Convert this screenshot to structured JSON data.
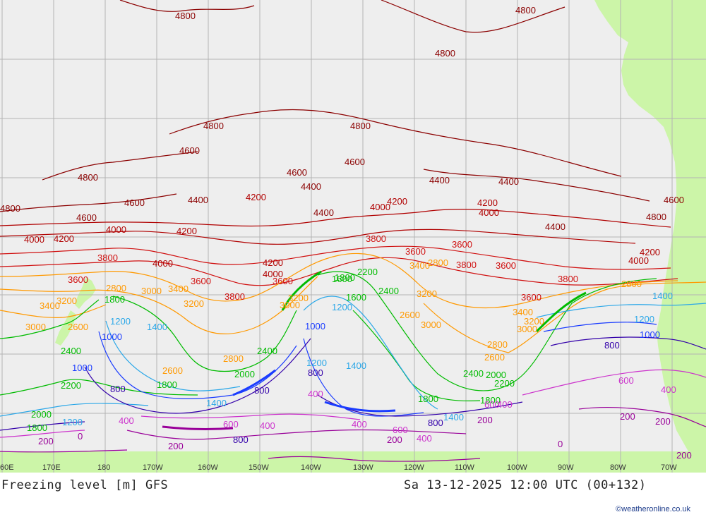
{
  "title": {
    "left": "Freezing level [m] GFS",
    "right": "Sa 13-12-2025 12:00 UTC (00+132)"
  },
  "credit": "©weatheronline.co.uk",
  "longitudes": [
    "60E",
    "170E",
    "180",
    "170W",
    "160W",
    "150W",
    "140W",
    "130W",
    "120W",
    "110W",
    "100W",
    "90W",
    "80W",
    "70W"
  ],
  "colors": {
    "ocean": "#eeeeee",
    "land": "#ccf5a8",
    "grid": "#b4b4b4",
    "c4800": "#8b0000",
    "c4000": "#b00000",
    "c3600": "#d01010",
    "c3000": "#ff9900",
    "c2400": "#00bb00",
    "c1400": "#2aa7e8",
    "c1000": "#1a3cff",
    "c800": "#3300aa",
    "c600": "#cc33cc",
    "c200": "#990099"
  },
  "contour_labels": [
    {
      "t": "4800",
      "c": "c4800"
    },
    {
      "t": "4800",
      "c": "c4800"
    },
    {
      "t": "4800",
      "c": "c4800"
    },
    {
      "t": "4800",
      "c": "c4800"
    },
    {
      "t": "4800",
      "c": "c4800"
    },
    {
      "t": "4800",
      "c": "c4800"
    },
    {
      "t": "4800",
      "c": "c4800"
    },
    {
      "t": "4800",
      "c": "c4800"
    },
    {
      "t": "4600",
      "c": "c4800"
    },
    {
      "t": "4600",
      "c": "c4800"
    },
    {
      "t": "4600",
      "c": "c4800"
    },
    {
      "t": "4600",
      "c": "c4800"
    },
    {
      "t": "4600",
      "c": "c4800"
    },
    {
      "t": "4600",
      "c": "c4800"
    },
    {
      "t": "4400",
      "c": "c4800"
    },
    {
      "t": "4400",
      "c": "c4800"
    },
    {
      "t": "4400",
      "c": "c4800"
    },
    {
      "t": "4400",
      "c": "c4800"
    },
    {
      "t": "4400",
      "c": "c4800"
    },
    {
      "t": "4400",
      "c": "c4800"
    },
    {
      "t": "4200",
      "c": "c4000"
    },
    {
      "t": "4200",
      "c": "c4000"
    },
    {
      "t": "4200",
      "c": "c4000"
    },
    {
      "t": "4200",
      "c": "c4000"
    },
    {
      "t": "4200",
      "c": "c4000"
    },
    {
      "t": "4200",
      "c": "c4000"
    },
    {
      "t": "4200",
      "c": "c4000"
    },
    {
      "t": "4000",
      "c": "c4000"
    },
    {
      "t": "4000",
      "c": "c4000"
    },
    {
      "t": "4000",
      "c": "c4000"
    },
    {
      "t": "4000",
      "c": "c4000"
    },
    {
      "t": "4000",
      "c": "c4000"
    },
    {
      "t": "4000",
      "c": "c4000"
    },
    {
      "t": "4000",
      "c": "c4000"
    },
    {
      "t": "3800",
      "c": "c3600"
    },
    {
      "t": "3800",
      "c": "c3600"
    },
    {
      "t": "3800",
      "c": "c3600"
    },
    {
      "t": "3800",
      "c": "c3600"
    },
    {
      "t": "3800",
      "c": "c3600"
    },
    {
      "t": "3600",
      "c": "c3600"
    },
    {
      "t": "3600",
      "c": "c3600"
    },
    {
      "t": "3600",
      "c": "c3600"
    },
    {
      "t": "3600",
      "c": "c3600"
    },
    {
      "t": "3600",
      "c": "c3600"
    },
    {
      "t": "3600",
      "c": "c3600"
    },
    {
      "t": "3600",
      "c": "c3600"
    },
    {
      "t": "3400",
      "c": "c3000"
    },
    {
      "t": "3400",
      "c": "c3000"
    },
    {
      "t": "3400",
      "c": "c3000"
    },
    {
      "t": "3400",
      "c": "c3000"
    },
    {
      "t": "3200",
      "c": "c3000"
    },
    {
      "t": "3200",
      "c": "c3000"
    },
    {
      "t": "3200",
      "c": "c3000"
    },
    {
      "t": "3200",
      "c": "c3000"
    },
    {
      "t": "3200",
      "c": "c3000"
    },
    {
      "t": "3000",
      "c": "c3000"
    },
    {
      "t": "3000",
      "c": "c3000"
    },
    {
      "t": "3000",
      "c": "c3000"
    },
    {
      "t": "3000",
      "c": "c3000"
    },
    {
      "t": "3000",
      "c": "c3000"
    },
    {
      "t": "2800",
      "c": "c3000"
    },
    {
      "t": "2800",
      "c": "c3000"
    },
    {
      "t": "2800",
      "c": "c3000"
    },
    {
      "t": "2800",
      "c": "c3000"
    },
    {
      "t": "2800",
      "c": "c3000"
    },
    {
      "t": "2600",
      "c": "c3000"
    },
    {
      "t": "2600",
      "c": "c3000"
    },
    {
      "t": "2600",
      "c": "c3000"
    },
    {
      "t": "2600",
      "c": "c3000"
    },
    {
      "t": "2400",
      "c": "c2400"
    },
    {
      "t": "2400",
      "c": "c2400"
    },
    {
      "t": "2400",
      "c": "c2400"
    },
    {
      "t": "2400",
      "c": "c2400"
    },
    {
      "t": "2200",
      "c": "c2400"
    },
    {
      "t": "2200",
      "c": "c2400"
    },
    {
      "t": "2200",
      "c": "c2400"
    },
    {
      "t": "2000",
      "c": "c2400"
    },
    {
      "t": "2000",
      "c": "c2400"
    },
    {
      "t": "2000",
      "c": "c2400"
    },
    {
      "t": "1800",
      "c": "c2400"
    },
    {
      "t": "1800",
      "c": "c2400"
    },
    {
      "t": "1800",
      "c": "c2400"
    },
    {
      "t": "1800",
      "c": "c2400"
    },
    {
      "t": "1800",
      "c": "c2400"
    },
    {
      "t": "1800",
      "c": "c2400"
    },
    {
      "t": "1600",
      "c": "c2400"
    },
    {
      "t": "1600",
      "c": "c2400"
    },
    {
      "t": "1400",
      "c": "c1400"
    },
    {
      "t": "1400",
      "c": "c1400"
    },
    {
      "t": "1400",
      "c": "c1400"
    },
    {
      "t": "1400",
      "c": "c1400"
    },
    {
      "t": "1400",
      "c": "c1400"
    },
    {
      "t": "1200",
      "c": "c1400"
    },
    {
      "t": "1200",
      "c": "c1400"
    },
    {
      "t": "1200",
      "c": "c1400"
    },
    {
      "t": "1200",
      "c": "c1400"
    },
    {
      "t": "1200",
      "c": "c1400"
    },
    {
      "t": "1000",
      "c": "c1000"
    },
    {
      "t": "1000",
      "c": "c1000"
    },
    {
      "t": "1000",
      "c": "c1000"
    },
    {
      "t": "1000",
      "c": "c1000"
    },
    {
      "t": "800",
      "c": "c800"
    },
    {
      "t": "800",
      "c": "c800"
    },
    {
      "t": "800",
      "c": "c800"
    },
    {
      "t": "800",
      "c": "c800"
    },
    {
      "t": "800",
      "c": "c800"
    },
    {
      "t": "800",
      "c": "c800"
    },
    {
      "t": "600",
      "c": "c600"
    },
    {
      "t": "600",
      "c": "c600"
    },
    {
      "t": "600",
      "c": "c600"
    },
    {
      "t": "600",
      "c": "c600"
    },
    {
      "t": "400",
      "c": "c600"
    },
    {
      "t": "400",
      "c": "c600"
    },
    {
      "t": "400",
      "c": "c600"
    },
    {
      "t": "400",
      "c": "c600"
    },
    {
      "t": "400",
      "c": "c600"
    },
    {
      "t": "400",
      "c": "c600"
    },
    {
      "t": "400",
      "c": "c600"
    },
    {
      "t": "200",
      "c": "c200"
    },
    {
      "t": "200",
      "c": "c200"
    },
    {
      "t": "200",
      "c": "c200"
    },
    {
      "t": "200",
      "c": "c200"
    },
    {
      "t": "200",
      "c": "c200"
    },
    {
      "t": "200",
      "c": "c200"
    },
    {
      "t": "200",
      "c": "c200"
    },
    {
      "t": "0",
      "c": "c200"
    },
    {
      "t": "0",
      "c": "c200"
    }
  ]
}
